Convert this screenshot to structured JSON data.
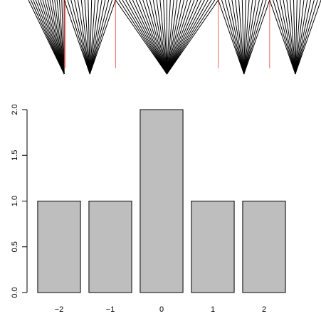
{
  "chart_data": [
    {
      "type": "fan",
      "description_key": "top-panel",
      "categories": [
        "-2",
        "-1",
        "0",
        "1",
        "2"
      ],
      "values": [
        1,
        1,
        2,
        1,
        1
      ],
      "rays_per_unit": 15,
      "colors": {
        "ray": "#000000",
        "baseline": "#e00000"
      }
    },
    {
      "type": "bar",
      "categories": [
        "−2",
        "−1",
        "0",
        "1",
        "2"
      ],
      "values": [
        1,
        1,
        2,
        1,
        1
      ],
      "title": "",
      "xlabel": "",
      "ylabel": "",
      "ylim": [
        0,
        2
      ],
      "yticks": [
        "0.0",
        "0.5",
        "1.0",
        "1.5",
        "2.0"
      ],
      "grid": false,
      "colors": {
        "bar_fill": "#bebebe",
        "bar_stroke": "#000000",
        "axis": "#000000"
      }
    }
  ]
}
